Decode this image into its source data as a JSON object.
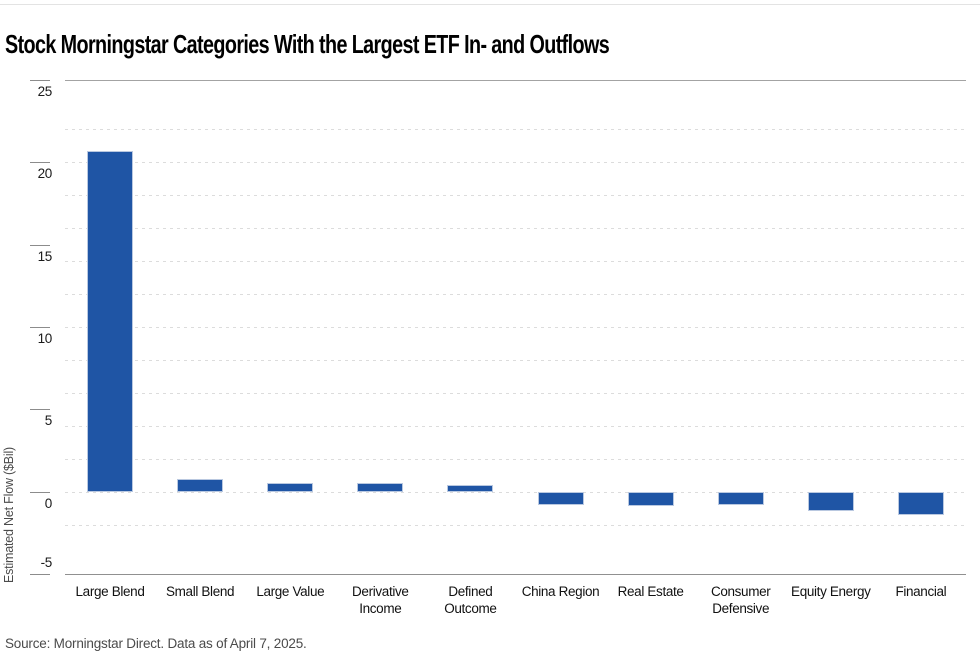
{
  "header": {
    "title": "Stock Morningstar Categories With the Largest ETF In- and Outflows"
  },
  "footer": {
    "source_note": "Source: Morningstar Direct. Data as of April 7, 2025."
  },
  "chart_data": {
    "type": "bar",
    "title": "Stock Morningstar Categories With the Largest ETF In- and Outflows",
    "categories": [
      "Large Blend",
      "Small Blend",
      "Large Value",
      "Derivative Income",
      "Defined Outcome",
      "China Region",
      "Real Estate",
      "Consumer Defensive",
      "Equity Energy",
      "Financial"
    ],
    "values": [
      20.7,
      0.8,
      0.5,
      0.5,
      0.4,
      -0.8,
      -0.9,
      -0.8,
      -1.2,
      -1.4
    ],
    "xlabel": "",
    "ylabel": "Estimated Net Flow ($Bil)",
    "ylim": [
      -5,
      25
    ],
    "y_ticks": [
      25,
      20,
      15,
      10,
      5,
      0,
      -5
    ],
    "minor_gridlines": [
      22,
      20,
      18,
      16,
      14,
      12,
      10,
      8,
      6,
      4,
      2,
      0,
      -2
    ],
    "grid": "horizontal dashed minor gridlines every 2 units; solid rules at 25 and -5",
    "legend_position": "none",
    "bar_color": "#1f55a5",
    "source": "Source: Morningstar Direct. Data as of April 7, 2025."
  },
  "colors": {
    "bar": "#1f55a5",
    "bar_border": "#b9c8e0",
    "axis_line_top": "#a3a3a3",
    "axis_line_bottom": "#909090",
    "minor_grid": "#dcdcdc",
    "tick": "#8c8c8c",
    "text": "#1a1a1a",
    "muted_text": "#4b4b4b",
    "top_rule": "#e3e3e3"
  }
}
